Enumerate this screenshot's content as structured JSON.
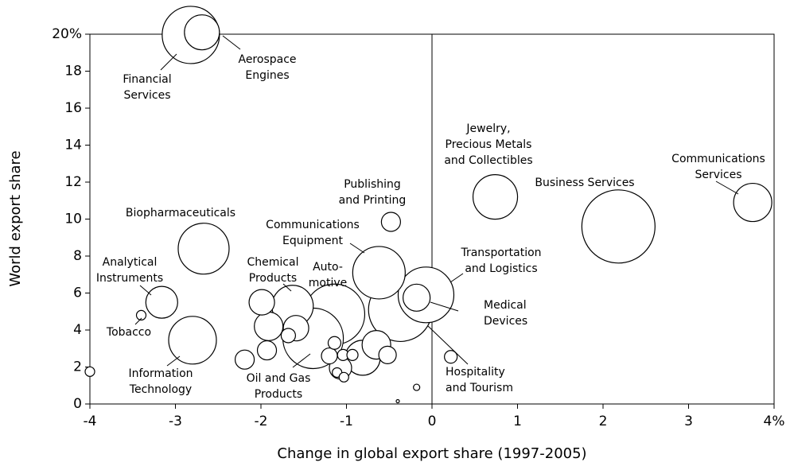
{
  "chart_data": {
    "type": "bubble",
    "x_label": "Change in global export share (1997-2005)",
    "y_label": "World export share",
    "xlim": [
      -4,
      4
    ],
    "ylim": [
      0,
      20
    ],
    "xticks": [
      -4,
      -3,
      -2,
      -1,
      0,
      1,
      2,
      3,
      {
        "value": 4,
        "label": "4%"
      }
    ],
    "yticks": [
      0,
      2,
      4,
      6,
      8,
      10,
      12,
      14,
      16,
      18,
      {
        "value": 20,
        "label": "20%"
      }
    ],
    "color": "#ffffff",
    "edgecolor": "#000000",
    "x": [
      2.18,
      -0.37,
      -1.14,
      -1.39,
      -2.82,
      -0.07,
      -0.62,
      -2.67,
      -2.8,
      0.74,
      -1.63,
      3.75,
      -2.69,
      -0.81,
      -3.16,
      -1.91,
      -0.65,
      -0.18,
      -1.99,
      -1.59,
      -1.07,
      -0.48,
      -1.93,
      -2.19,
      -0.52,
      -1.2,
      -1.68,
      -1.14,
      0.22,
      -1.04,
      -0.93,
      -3.4,
      -4.0,
      -1.11,
      -1.03,
      -0.18,
      -0.4
    ],
    "values": [
      9.6,
      5.1,
      4.85,
      3.55,
      19.96,
      5.9,
      7.1,
      8.4,
      3.45,
      11.2,
      5.3,
      10.9,
      20.1,
      2.5,
      5.5,
      4.2,
      3.2,
      5.75,
      5.5,
      4.1,
      1.95,
      9.85,
      2.9,
      2.4,
      2.65,
      2.6,
      3.7,
      3.3,
      2.55,
      2.65,
      2.65,
      4.8,
      1.75,
      1.7,
      1.45,
      0.9,
      0.15
    ],
    "sizes": [
      46,
      40,
      38,
      38,
      36,
      35,
      33,
      32,
      30,
      28,
      26,
      24,
      22,
      22,
      20,
      18,
      18,
      17,
      16,
      16,
      14,
      12,
      12,
      12,
      11,
      10,
      9,
      8,
      8,
      7,
      7,
      6,
      6,
      6,
      6,
      4,
      2
    ],
    "labels": [
      [
        "Business Services"
      ],
      [
        "Hospitality",
        "and Tourism"
      ],
      [
        "Auto-",
        "motive"
      ],
      [
        "Oil and Gas",
        "Products"
      ],
      [
        "Financial",
        "Services"
      ],
      [
        "Transportation",
        "and Logistics"
      ],
      [
        "Communications",
        "Equipment"
      ],
      [
        "Biopharmaceuticals"
      ],
      [
        "Information",
        "Technology"
      ],
      [
        "Jewelry,",
        "Precious Metals",
        "and Collectibles"
      ],
      [
        "Chemical",
        "Products"
      ],
      [
        "Communications",
        "Services"
      ],
      [
        "Aerospace",
        "Engines"
      ],
      null,
      [
        "Analytical",
        "Instruments"
      ],
      null,
      null,
      [
        "Medical",
        "Devices"
      ],
      null,
      null,
      null,
      [
        "Publishing",
        "and Printing"
      ],
      null,
      null,
      null,
      null,
      null,
      null,
      null,
      null,
      null,
      [
        "Tobacco"
      ],
      null,
      null,
      null,
      null,
      null
    ]
  }
}
